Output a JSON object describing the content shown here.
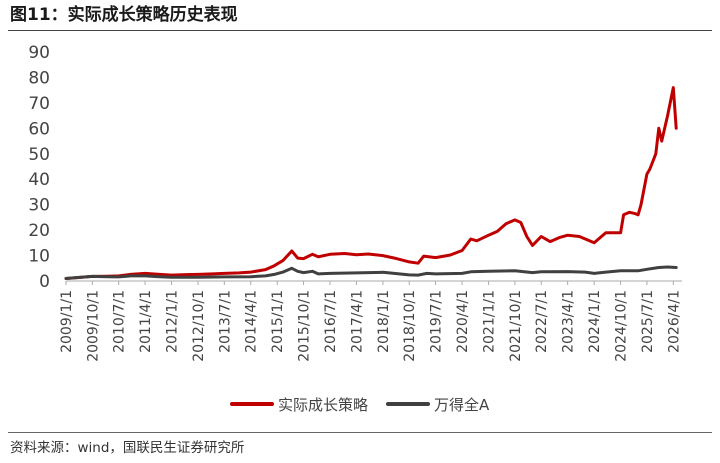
{
  "figure": {
    "title": "图11：实际成长策略历史表现",
    "source": "资料来源：wind，国联民生证券研究所"
  },
  "colors": {
    "series_1": "#c00000",
    "series_2": "#404040",
    "axis": "#aaaaaa",
    "text": "#444444"
  },
  "chart_data": {
    "type": "line",
    "title": "",
    "xlabel": "",
    "ylabel": "",
    "ylim": [
      0,
      90
    ],
    "yticks": [
      0,
      10,
      20,
      30,
      40,
      50,
      60,
      70,
      80,
      90
    ],
    "xlim": [
      "2009/1/1",
      "2026/6/30"
    ],
    "xtick_labels": [
      "2009/1/1",
      "2009/10/1",
      "2010/7/1",
      "2011/4/1",
      "2012/1/1",
      "2012/10/1",
      "2013/7/1",
      "2014/4/1",
      "2015/1/1",
      "2015/10/1",
      "2016/7/1",
      "2017/4/1",
      "2018/1/1",
      "2018/10/1",
      "2019/7/1",
      "2020/4/1",
      "2021/1/1",
      "2021/10/1",
      "2022/7/1",
      "2023/4/1",
      "2024/1/1",
      "2024/10/1",
      "2025/7/1",
      "2026/4/1"
    ],
    "grid": false,
    "legend": "bottom",
    "series": [
      {
        "name": "实际成长策略",
        "points": [
          [
            "2009/1/1",
            1.0
          ],
          [
            "2009/6/1",
            1.4
          ],
          [
            "2009/10/1",
            1.8
          ],
          [
            "2010/3/1",
            1.9
          ],
          [
            "2010/7/1",
            2.0
          ],
          [
            "2010/11/1",
            2.6
          ],
          [
            "2011/4/1",
            3.0
          ],
          [
            "2011/9/1",
            2.6
          ],
          [
            "2012/1/1",
            2.3
          ],
          [
            "2012/6/1",
            2.5
          ],
          [
            "2012/10/1",
            2.6
          ],
          [
            "2013/3/1",
            2.8
          ],
          [
            "2013/7/1",
            3.0
          ],
          [
            "2013/12/1",
            3.2
          ],
          [
            "2014/4/1",
            3.5
          ],
          [
            "2014/9/1",
            4.5
          ],
          [
            "2014/12/1",
            6.0
          ],
          [
            "2015/3/1",
            8.0
          ],
          [
            "2015/6/1",
            11.8
          ],
          [
            "2015/8/1",
            9.0
          ],
          [
            "2015/10/1",
            8.8
          ],
          [
            "2016/1/1",
            10.5
          ],
          [
            "2016/3/1",
            9.5
          ],
          [
            "2016/7/1",
            10.5
          ],
          [
            "2016/12/1",
            10.8
          ],
          [
            "2017/4/1",
            10.3
          ],
          [
            "2017/8/1",
            10.6
          ],
          [
            "2018/1/1",
            10.0
          ],
          [
            "2018/5/1",
            9.0
          ],
          [
            "2018/10/1",
            7.5
          ],
          [
            "2019/1/1",
            7.0
          ],
          [
            "2019/3/1",
            9.8
          ],
          [
            "2019/7/1",
            9.2
          ],
          [
            "2019/12/1",
            10.2
          ],
          [
            "2020/4/1",
            12.0
          ],
          [
            "2020/7/1",
            16.5
          ],
          [
            "2020/9/1",
            15.8
          ],
          [
            "2021/1/1",
            18.0
          ],
          [
            "2021/4/1",
            19.5
          ],
          [
            "2021/7/1",
            22.5
          ],
          [
            "2021/10/1",
            24.0
          ],
          [
            "2021/12/1",
            23.0
          ],
          [
            "2022/2/1",
            17.5
          ],
          [
            "2022/4/1",
            14.0
          ],
          [
            "2022/7/1",
            17.5
          ],
          [
            "2022/10/1",
            15.5
          ],
          [
            "2023/1/1",
            17.0
          ],
          [
            "2023/4/1",
            18.0
          ],
          [
            "2023/8/1",
            17.5
          ],
          [
            "2024/1/1",
            15.0
          ],
          [
            "2024/5/1",
            19.0
          ],
          [
            "2024/10/1",
            19.0
          ],
          [
            "2024/11/1",
            26.0
          ],
          [
            "2025/1/1",
            27.0
          ],
          [
            "2025/3/1",
            26.5
          ],
          [
            "2025/4/1",
            26.0
          ],
          [
            "2025/5/1",
            30.0
          ],
          [
            "2025/7/1",
            42.0
          ],
          [
            "2025/8/1",
            44.0
          ],
          [
            "2025/10/1",
            50.0
          ],
          [
            "2025/11/1",
            60.0
          ],
          [
            "2025/12/1",
            55.0
          ],
          [
            "2026/2/1",
            65.0
          ],
          [
            "2026/4/1",
            76.0
          ],
          [
            "2026/5/1",
            60.0
          ]
        ]
      },
      {
        "name": "万得全A",
        "points": [
          [
            "2009/1/1",
            1.0
          ],
          [
            "2009/6/1",
            1.5
          ],
          [
            "2009/10/1",
            1.8
          ],
          [
            "2010/3/1",
            1.7
          ],
          [
            "2010/7/1",
            1.6
          ],
          [
            "2010/11/1",
            2.0
          ],
          [
            "2011/4/1",
            2.0
          ],
          [
            "2011/9/1",
            1.7
          ],
          [
            "2012/1/1",
            1.5
          ],
          [
            "2012/10/1",
            1.5
          ],
          [
            "2013/7/1",
            1.6
          ],
          [
            "2014/4/1",
            1.7
          ],
          [
            "2014/9/1",
            2.0
          ],
          [
            "2014/12/1",
            2.6
          ],
          [
            "2015/3/1",
            3.5
          ],
          [
            "2015/6/1",
            5.0
          ],
          [
            "2015/8/1",
            3.8
          ],
          [
            "2015/10/1",
            3.3
          ],
          [
            "2016/1/1",
            3.8
          ],
          [
            "2016/3/1",
            2.8
          ],
          [
            "2016/7/1",
            3.0
          ],
          [
            "2017/4/1",
            3.2
          ],
          [
            "2018/1/1",
            3.4
          ],
          [
            "2018/10/1",
            2.4
          ],
          [
            "2019/1/1",
            2.3
          ],
          [
            "2019/4/1",
            3.0
          ],
          [
            "2019/7/1",
            2.8
          ],
          [
            "2020/4/1",
            3.0
          ],
          [
            "2020/7/1",
            3.6
          ],
          [
            "2021/1/1",
            3.8
          ],
          [
            "2021/10/1",
            4.0
          ],
          [
            "2022/4/1",
            3.3
          ],
          [
            "2022/7/1",
            3.6
          ],
          [
            "2023/4/1",
            3.7
          ],
          [
            "2023/10/1",
            3.5
          ],
          [
            "2024/1/1",
            3.0
          ],
          [
            "2024/5/1",
            3.5
          ],
          [
            "2024/10/1",
            4.0
          ],
          [
            "2025/4/1",
            4.0
          ],
          [
            "2025/7/1",
            4.6
          ],
          [
            "2025/11/1",
            5.3
          ],
          [
            "2026/2/1",
            5.5
          ],
          [
            "2026/5/1",
            5.3
          ]
        ]
      }
    ]
  }
}
